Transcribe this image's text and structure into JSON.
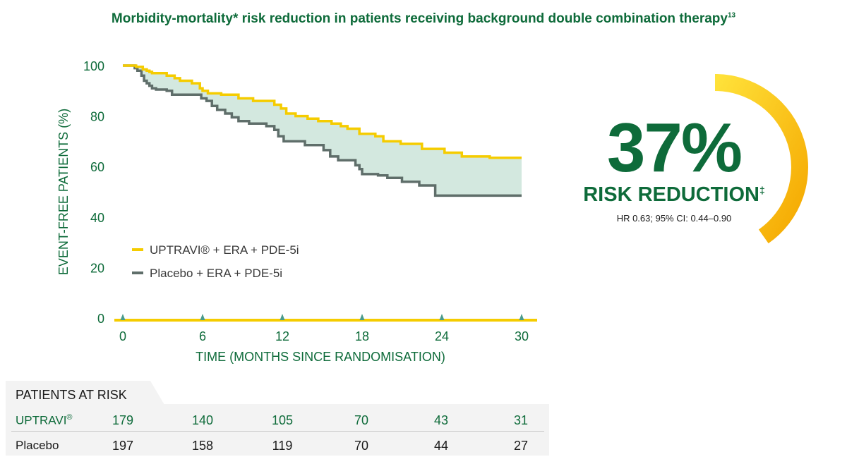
{
  "title": {
    "text": "Morbidity-mortality* risk reduction in patients receiving background double combination therapy",
    "superscript": "13"
  },
  "callout": {
    "value": "37%",
    "label": "RISK REDUCTION",
    "label_superscript": "‡",
    "hr_text": "HR 0.63; 95% CI: 0.44–0.90",
    "arc_color_start": "#ffe23a",
    "arc_color_end": "#f5a800"
  },
  "chart_data": {
    "type": "line",
    "xlabel": "TIME (MONTHS SINCE RANDOMISATION)",
    "ylabel": "EVENT-FREE PATIENTS (%)",
    "x_ticks": [
      0,
      6,
      12,
      18,
      24,
      30
    ],
    "y_ticks": [
      0,
      20,
      40,
      60,
      80,
      100
    ],
    "xlim": [
      0,
      30
    ],
    "ylim": [
      0,
      100
    ],
    "legend_position": "bottom-left",
    "shaded_between_series": true,
    "shade_color": "#d3e8df",
    "series": [
      {
        "name": "UPTRAVI® + ERA + PDE-5i",
        "color": "#f5cc00",
        "x": [
          0,
          0.8,
          1.0,
          1.5,
          1.8,
          2.0,
          2.2,
          3.0,
          3.3,
          3.9,
          4.3,
          5.2,
          5.8,
          6.0,
          6.4,
          7.4,
          8.7,
          9.8,
          11.4,
          11.9,
          12.3,
          13.0,
          13.9,
          14.7,
          15.7,
          16.4,
          16.9,
          17.8,
          19.0,
          19.6,
          20.9,
          22.5,
          24.2,
          25.5,
          27.6,
          30.0
        ],
        "y": [
          100,
          100,
          99.5,
          98.5,
          98,
          97.5,
          97,
          97,
          96,
          95,
          94,
          93,
          91,
          90,
          89,
          88.5,
          87,
          86,
          84.5,
          83,
          81,
          80,
          79,
          78,
          77,
          76,
          75,
          73,
          72,
          70,
          69,
          67,
          65.5,
          64,
          63.5,
          63.5
        ]
      },
      {
        "name": "Placebo + ERA + PDE-5i",
        "color": "#5f6e6a",
        "x": [
          0,
          0.9,
          1.1,
          1.4,
          1.6,
          1.8,
          2.0,
          2.2,
          2.5,
          3.3,
          3.7,
          5.9,
          6.3,
          6.7,
          7.1,
          7.7,
          8.2,
          8.7,
          9.5,
          10.8,
          11.4,
          11.7,
          12.1,
          13.7,
          15.1,
          15.6,
          16.2,
          17.5,
          17.8,
          18.0,
          19.2,
          19.9,
          21.0,
          22.3,
          23.5,
          30.0
        ],
        "y": [
          100,
          99,
          98,
          96,
          94,
          93,
          92,
          91,
          90.5,
          90,
          88.5,
          87,
          86,
          84,
          82.5,
          81,
          79.5,
          78,
          77,
          76,
          74.5,
          72,
          70,
          68.5,
          66.5,
          64,
          62.5,
          60.5,
          59,
          57,
          56.5,
          55.5,
          54,
          52.5,
          48.5,
          48.5
        ]
      }
    ],
    "risk_table": {
      "title": "PATIENTS AT RISK",
      "rows": [
        {
          "label": "UPTRAVI",
          "label_mark": "®",
          "values": [
            "179",
            "140",
            "105",
            "70",
            "43",
            "31"
          ]
        },
        {
          "label": "Placebo",
          "label_mark": "",
          "values": [
            "197",
            "158",
            "119",
            "70",
            "44",
            "27"
          ]
        }
      ]
    }
  }
}
